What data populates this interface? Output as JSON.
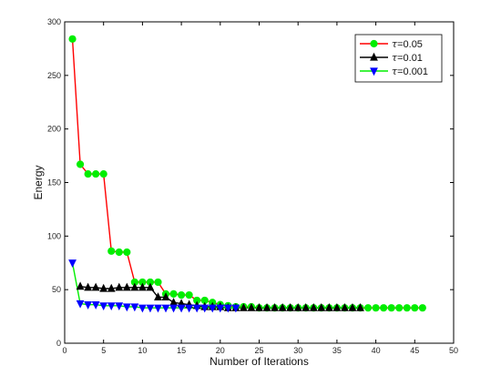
{
  "chart_data": {
    "type": "line",
    "xlabel": "Number of Iterations",
    "ylabel": "Energy",
    "xlim": [
      0,
      50
    ],
    "ylim": [
      0,
      300
    ],
    "xticks": [
      0,
      5,
      10,
      15,
      20,
      25,
      30,
      35,
      40,
      45,
      50
    ],
    "yticks": [
      0,
      50,
      100,
      150,
      200,
      250,
      300
    ],
    "grid": false,
    "legend_position": "top-right",
    "series": [
      {
        "name": "τ=0.05",
        "name_symbol": "τ",
        "name_value": "=0.05",
        "line_color": "#ff0000",
        "marker": "circle",
        "marker_color": "#00ee00",
        "x": [
          1,
          2,
          3,
          4,
          5,
          6,
          7,
          8,
          9,
          10,
          11,
          12,
          13,
          14,
          15,
          16,
          17,
          18,
          19,
          20,
          21,
          22,
          23,
          24,
          25,
          26,
          27,
          28,
          29,
          30,
          31,
          32,
          33,
          34,
          35,
          36,
          37,
          38,
          39,
          40,
          41,
          42,
          43,
          44,
          45,
          46
        ],
        "y": [
          284,
          167,
          158,
          158,
          158,
          86,
          85,
          85,
          57,
          57,
          57,
          57,
          46,
          46,
          45,
          45,
          40,
          40,
          38,
          36,
          35,
          34,
          34,
          34,
          33,
          33,
          33,
          33,
          33,
          33,
          33,
          33,
          33,
          33,
          33,
          33,
          33,
          33,
          33,
          33,
          33,
          33,
          33,
          33,
          33,
          33
        ]
      },
      {
        "name": "τ=0.01",
        "name_symbol": "τ",
        "name_value": "=0.01",
        "line_color": "#000000",
        "marker": "triangle-up",
        "marker_color": "#000000",
        "x": [
          2,
          3,
          4,
          5,
          6,
          7,
          8,
          9,
          10,
          11,
          12,
          13,
          14,
          15,
          16,
          17,
          18,
          19,
          20,
          21,
          22,
          23,
          24,
          25,
          26,
          27,
          28,
          29,
          30,
          31,
          32,
          33,
          34,
          35,
          36,
          37,
          38
        ],
        "y": [
          53,
          52,
          52,
          51,
          51,
          52,
          52,
          52,
          52,
          52,
          43,
          43,
          38,
          37,
          36,
          35,
          34,
          34,
          34,
          33,
          33,
          33,
          33,
          33,
          33,
          33,
          33,
          33,
          33,
          33,
          33,
          33,
          33,
          33,
          33,
          33,
          33
        ]
      },
      {
        "name": "τ=0.001",
        "name_symbol": "τ",
        "name_value": "=0.001",
        "line_color": "#00ee00",
        "marker": "triangle-down",
        "marker_color": "#0000ff",
        "x": [
          1,
          2,
          3,
          4,
          5,
          6,
          7,
          8,
          9,
          10,
          11,
          12,
          13,
          14,
          15,
          16,
          17,
          18,
          19,
          20,
          21,
          22
        ],
        "y": [
          75,
          37,
          36,
          36,
          35,
          35,
          35,
          34,
          34,
          33,
          33,
          33,
          33,
          33,
          33,
          33,
          33,
          33,
          33,
          33,
          33,
          33
        ]
      }
    ]
  }
}
